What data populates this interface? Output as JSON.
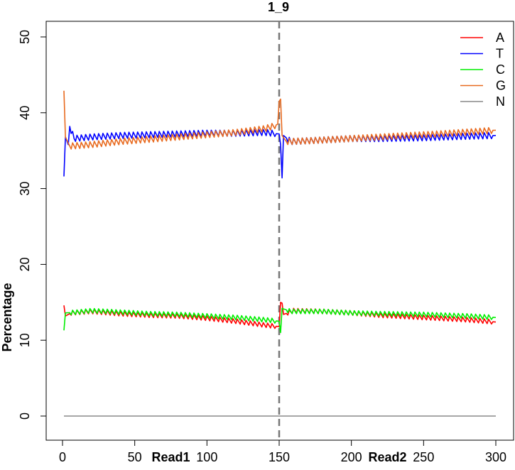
{
  "chart_data": {
    "type": "line",
    "title": "1_9",
    "ylabel": "Percentage",
    "xlabel": "",
    "read_labels": [
      {
        "text": "Read1",
        "x": 75
      },
      {
        "text": "Read2",
        "x": 225
      }
    ],
    "xlim": [
      0,
      300
    ],
    "ylim": [
      0,
      50
    ],
    "x_ticks": [
      0,
      50,
      100,
      150,
      200,
      250,
      300
    ],
    "y_ticks": [
      0,
      10,
      20,
      30,
      40,
      50
    ],
    "divider_x": 150,
    "legend_position": "top-right",
    "x_start": 1,
    "x_end": 300,
    "series": [
      {
        "name": "A",
        "color": "#ff0000",
        "segments": [
          {
            "x_range": [
              1,
              150
            ],
            "anchors": [
              [
                1,
                14.6
              ],
              [
                2,
                13.2
              ],
              [
                6,
                13.6
              ],
              [
                20,
                13.8
              ],
              [
                40,
                13.5
              ],
              [
                60,
                13.3
              ],
              [
                80,
                13.2
              ],
              [
                100,
                12.9
              ],
              [
                120,
                12.5
              ],
              [
                140,
                12.0
              ],
              [
                150,
                11.8
              ]
            ],
            "zigzag": 0.3,
            "period": 3
          },
          {
            "x_range": [
              151,
              300
            ],
            "anchors": [
              [
                151,
                15.0
              ],
              [
                152,
                14.9
              ],
              [
                153,
                13.4
              ],
              [
                160,
                13.9
              ],
              [
                180,
                13.8
              ],
              [
                200,
                13.6
              ],
              [
                220,
                13.3
              ],
              [
                250,
                13.0
              ],
              [
                280,
                12.7
              ],
              [
                300,
                12.4
              ]
            ],
            "zigzag": 0.3,
            "period": 3
          }
        ]
      },
      {
        "name": "T",
        "color": "#0000ff",
        "segments": [
          {
            "x_range": [
              1,
              150
            ],
            "anchors": [
              [
                1,
                31.6
              ],
              [
                2,
                36.8
              ],
              [
                4,
                35.8
              ],
              [
                5,
                38.2
              ],
              [
                8,
                36.6
              ],
              [
                20,
                36.8
              ],
              [
                40,
                37.0
              ],
              [
                60,
                37.1
              ],
              [
                80,
                37.2
              ],
              [
                100,
                37.3
              ],
              [
                120,
                37.3
              ],
              [
                140,
                37.4
              ],
              [
                150,
                37.2
              ]
            ],
            "zigzag": 0.4,
            "period": 3
          },
          {
            "x_range": [
              151,
              300
            ],
            "anchors": [
              [
                151,
                35.8
              ],
              [
                152,
                31.4
              ],
              [
                153,
                37.0
              ],
              [
                158,
                36.2
              ],
              [
                180,
                36.4
              ],
              [
                200,
                36.6
              ],
              [
                220,
                36.6
              ],
              [
                250,
                36.7
              ],
              [
                280,
                36.9
              ],
              [
                300,
                37.0
              ]
            ],
            "zigzag": 0.4,
            "period": 3
          }
        ]
      },
      {
        "name": "C",
        "color": "#00ee00",
        "segments": [
          {
            "x_range": [
              1,
              150
            ],
            "anchors": [
              [
                1,
                11.3
              ],
              [
                2,
                13.6
              ],
              [
                10,
                13.7
              ],
              [
                20,
                13.9
              ],
              [
                40,
                13.7
              ],
              [
                60,
                13.5
              ],
              [
                80,
                13.4
              ],
              [
                100,
                13.2
              ],
              [
                120,
                13.0
              ],
              [
                140,
                12.7
              ],
              [
                150,
                12.5
              ]
            ],
            "zigzag": 0.3,
            "period": 3
          },
          {
            "x_range": [
              151,
              300
            ],
            "anchors": [
              [
                151,
                11.0
              ],
              [
                152,
                14.2
              ],
              [
                158,
                13.8
              ],
              [
                180,
                13.8
              ],
              [
                200,
                13.6
              ],
              [
                220,
                13.5
              ],
              [
                250,
                13.4
              ],
              [
                280,
                13.2
              ],
              [
                300,
                13.0
              ]
            ],
            "zigzag": 0.3,
            "period": 3
          }
        ]
      },
      {
        "name": "G",
        "color": "#e86a1f",
        "segments": [
          {
            "x_range": [
              1,
              150
            ],
            "anchors": [
              [
                1,
                42.9
              ],
              [
                2,
                36.8
              ],
              [
                5,
                35.6
              ],
              [
                20,
                35.8
              ],
              [
                40,
                36.2
              ],
              [
                60,
                36.5
              ],
              [
                80,
                36.8
              ],
              [
                100,
                37.1
              ],
              [
                120,
                37.4
              ],
              [
                140,
                37.9
              ],
              [
                147,
                38.3
              ],
              [
                149,
                38.5
              ],
              [
                150,
                41.5
              ]
            ],
            "zigzag": 0.4,
            "period": 3
          },
          {
            "x_range": [
              151,
              300
            ],
            "anchors": [
              [
                151,
                41.8
              ],
              [
                152,
                37.0
              ],
              [
                155,
                36.2
              ],
              [
                170,
                36.3
              ],
              [
                200,
                36.6
              ],
              [
                230,
                36.9
              ],
              [
                260,
                37.2
              ],
              [
                300,
                37.7
              ]
            ],
            "zigzag": 0.4,
            "period": 3
          }
        ]
      },
      {
        "name": "N",
        "color": "#888888",
        "segments": [
          {
            "x_range": [
              1,
              300
            ],
            "anchors": [
              [
                1,
                0.0
              ],
              [
                300,
                0.0
              ]
            ],
            "zigzag": 0,
            "period": 3
          }
        ]
      }
    ]
  }
}
